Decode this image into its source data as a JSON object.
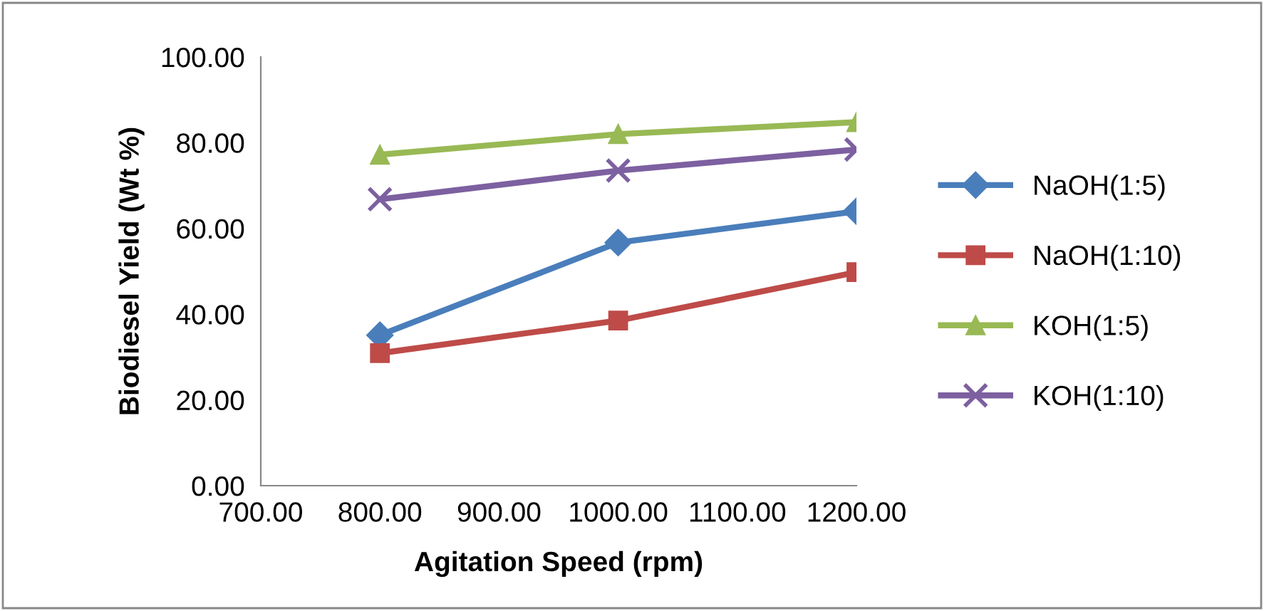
{
  "chart_data": {
    "type": "line",
    "xlabel": "Agitation Speed (rpm)",
    "ylabel": "Biodiesel Yield (Wt %)",
    "x": [
      800,
      1000,
      1200
    ],
    "series": [
      {
        "name": "NaOH(1:5)",
        "color": "#4a7ebb",
        "marker": "diamond",
        "values": [
          35.1,
          56.7,
          64.0
        ]
      },
      {
        "name": "NaOH(1:10)",
        "color": "#be4b48",
        "marker": "square",
        "values": [
          30.9,
          38.5,
          49.8
        ]
      },
      {
        "name": "KOH(1:5)",
        "color": "#98b954",
        "marker": "triangle",
        "values": [
          77.2,
          82.0,
          84.8
        ]
      },
      {
        "name": "KOH(1:10)",
        "color": "#7d60a0",
        "marker": "cross",
        "values": [
          66.8,
          73.5,
          78.4
        ]
      }
    ],
    "xlim": [
      700,
      1200
    ],
    "xticks": [
      {
        "value": 700,
        "label": "700.00"
      },
      {
        "value": 800,
        "label": "800.00"
      },
      {
        "value": 900,
        "label": "900.00"
      },
      {
        "value": 1000,
        "label": "1000.00"
      },
      {
        "value": 1100,
        "label": "1100.00"
      },
      {
        "value": 1200,
        "label": "1200.00"
      }
    ],
    "ylim": [
      0,
      100
    ],
    "yticks": [
      {
        "value": 0,
        "label": "0.00"
      },
      {
        "value": 20,
        "label": "20.00"
      },
      {
        "value": 40,
        "label": "40.00"
      },
      {
        "value": 60,
        "label": "60.00"
      },
      {
        "value": 80,
        "label": "80.00"
      },
      {
        "value": 100,
        "label": "100.00"
      }
    ],
    "grid": false,
    "legend": "right",
    "line_style": "solid"
  }
}
